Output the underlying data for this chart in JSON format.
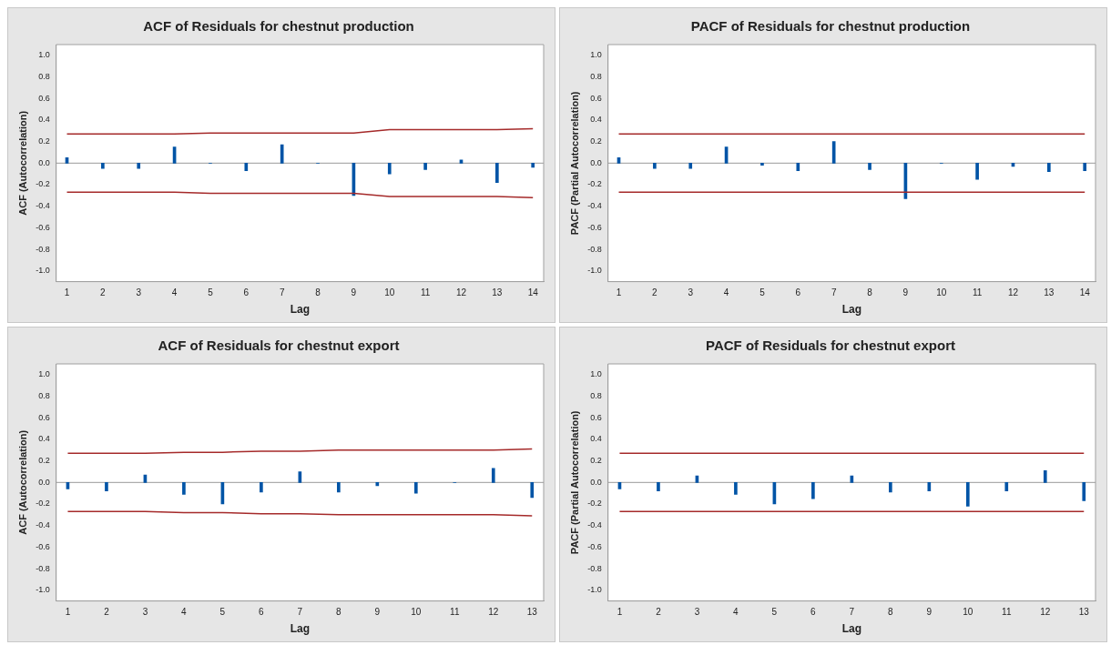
{
  "chart_data": [
    {
      "type": "bar",
      "title": "ACF of Residuals for chestnut production",
      "xlabel": "Lag",
      "ylabel": "ACF (Autocorrelation)",
      "x": [
        1,
        2,
        3,
        4,
        5,
        6,
        7,
        8,
        9,
        10,
        11,
        12,
        13,
        14
      ],
      "xlim": [
        0.7,
        14.3
      ],
      "xticks": [
        1,
        2,
        3,
        4,
        5,
        6,
        7,
        8,
        9,
        10,
        11,
        12,
        13,
        14
      ],
      "series": [
        {
          "color": "#0054a6",
          "values": [
            0.05,
            -0.05,
            -0.05,
            0.15,
            0.0,
            -0.07,
            0.17,
            0.0,
            -0.3,
            -0.1,
            -0.06,
            0.03,
            -0.18,
            -0.04
          ]
        },
        {
          "type": "line",
          "color": "#a52a2a",
          "values": [
            0.27,
            0.27,
            0.27,
            0.27,
            0.28,
            0.28,
            0.28,
            0.28,
            0.28,
            0.31,
            0.31,
            0.31,
            0.31,
            0.32
          ]
        },
        {
          "type": "line",
          "color": "#a52a2a",
          "values": [
            -0.27,
            -0.27,
            -0.27,
            -0.27,
            -0.28,
            -0.28,
            -0.28,
            -0.28,
            -0.28,
            -0.31,
            -0.31,
            -0.31,
            -0.31,
            -0.32
          ]
        }
      ],
      "ylim": [
        -1.1,
        1.1
      ],
      "yticks": [
        {
          "value": -1,
          "label": "-1.0"
        },
        -0.8,
        -0.6,
        -0.4,
        -0.2,
        {
          "value": 0,
          "label": "0.0"
        },
        0.2,
        0.4,
        0.6,
        0.8,
        {
          "value": 1,
          "label": "1.0"
        }
      ],
      "ref_lines": [
        {
          "axis": "y",
          "value": 0,
          "color": "#999999"
        }
      ],
      "grid": false,
      "legend": false,
      "marker": "none"
    },
    {
      "type": "bar",
      "title": "PACF of Residuals for chestnut production",
      "xlabel": "Lag",
      "ylabel": "PACF (Partial Autocorrelation)",
      "x": [
        1,
        2,
        3,
        4,
        5,
        6,
        7,
        8,
        9,
        10,
        11,
        12,
        13,
        14
      ],
      "xlim": [
        0.7,
        14.3
      ],
      "xticks": [
        1,
        2,
        3,
        4,
        5,
        6,
        7,
        8,
        9,
        10,
        11,
        12,
        13,
        14
      ],
      "series": [
        {
          "color": "#0054a6",
          "values": [
            0.05,
            -0.05,
            -0.05,
            0.15,
            -0.02,
            -0.07,
            0.2,
            -0.06,
            -0.33,
            0.0,
            -0.15,
            -0.03,
            -0.08,
            -0.07
          ]
        },
        {
          "type": "line",
          "color": "#a52a2a",
          "values": [
            0.27,
            0.27,
            0.27,
            0.27,
            0.27,
            0.27,
            0.27,
            0.27,
            0.27,
            0.27,
            0.27,
            0.27,
            0.27,
            0.27
          ]
        },
        {
          "type": "line",
          "color": "#a52a2a",
          "values": [
            -0.27,
            -0.27,
            -0.27,
            -0.27,
            -0.27,
            -0.27,
            -0.27,
            -0.27,
            -0.27,
            -0.27,
            -0.27,
            -0.27,
            -0.27,
            -0.27
          ]
        }
      ],
      "ylim": [
        -1.1,
        1.1
      ],
      "yticks": [
        {
          "value": -1,
          "label": "-1.0"
        },
        -0.8,
        -0.6,
        -0.4,
        -0.2,
        {
          "value": 0,
          "label": "0.0"
        },
        0.2,
        0.4,
        0.6,
        0.8,
        {
          "value": 1,
          "label": "1.0"
        }
      ],
      "ref_lines": [
        {
          "axis": "y",
          "value": 0,
          "color": "#999999"
        }
      ],
      "grid": false,
      "legend": false,
      "marker": "none"
    },
    {
      "type": "bar",
      "title": "ACF of Residuals for chestnut export",
      "xlabel": "Lag",
      "ylabel": "ACF (Autocorrelation)",
      "x": [
        1,
        2,
        3,
        4,
        5,
        6,
        7,
        8,
        9,
        10,
        11,
        12,
        13
      ],
      "xlim": [
        0.7,
        13.3
      ],
      "xticks": [
        1,
        2,
        3,
        4,
        5,
        6,
        7,
        8,
        9,
        10,
        11,
        12,
        13
      ],
      "series": [
        {
          "color": "#0054a6",
          "values": [
            -0.06,
            -0.08,
            0.07,
            -0.11,
            -0.2,
            -0.09,
            0.1,
            -0.09,
            -0.03,
            -0.1,
            0.0,
            0.13,
            -0.14
          ]
        },
        {
          "type": "line",
          "color": "#a52a2a",
          "values": [
            0.27,
            0.27,
            0.27,
            0.28,
            0.28,
            0.29,
            0.29,
            0.3,
            0.3,
            0.3,
            0.3,
            0.3,
            0.31
          ]
        },
        {
          "type": "line",
          "color": "#a52a2a",
          "values": [
            -0.27,
            -0.27,
            -0.27,
            -0.28,
            -0.28,
            -0.29,
            -0.29,
            -0.3,
            -0.3,
            -0.3,
            -0.3,
            -0.3,
            -0.31
          ]
        }
      ],
      "ylim": [
        -1.1,
        1.1
      ],
      "yticks": [
        {
          "value": -1,
          "label": "-1.0"
        },
        -0.8,
        -0.6,
        -0.4,
        -0.2,
        {
          "value": 0,
          "label": "0.0"
        },
        0.2,
        0.4,
        0.6,
        0.8,
        {
          "value": 1,
          "label": "1.0"
        }
      ],
      "ref_lines": [
        {
          "axis": "y",
          "value": 0,
          "color": "#999999"
        }
      ],
      "grid": false,
      "legend": false,
      "marker": "none"
    },
    {
      "type": "bar",
      "title": "PACF of Residuals for chestnut export",
      "xlabel": "Lag",
      "ylabel": "PACF (Partial Autocorrelation)",
      "x": [
        1,
        2,
        3,
        4,
        5,
        6,
        7,
        8,
        9,
        10,
        11,
        12,
        13
      ],
      "xlim": [
        0.7,
        13.3
      ],
      "xticks": [
        1,
        2,
        3,
        4,
        5,
        6,
        7,
        8,
        9,
        10,
        11,
        12,
        13
      ],
      "series": [
        {
          "color": "#0054a6",
          "values": [
            -0.06,
            -0.08,
            0.06,
            -0.11,
            -0.2,
            -0.15,
            0.06,
            -0.09,
            -0.08,
            -0.22,
            -0.08,
            0.11,
            -0.17
          ]
        },
        {
          "type": "line",
          "color": "#a52a2a",
          "values": [
            0.27,
            0.27,
            0.27,
            0.27,
            0.27,
            0.27,
            0.27,
            0.27,
            0.27,
            0.27,
            0.27,
            0.27,
            0.27
          ]
        },
        {
          "type": "line",
          "color": "#a52a2a",
          "values": [
            -0.27,
            -0.27,
            -0.27,
            -0.27,
            -0.27,
            -0.27,
            -0.27,
            -0.27,
            -0.27,
            -0.27,
            -0.27,
            -0.27,
            -0.27
          ]
        }
      ],
      "ylim": [
        -1.1,
        1.1
      ],
      "yticks": [
        {
          "value": -1,
          "label": "-1.0"
        },
        -0.8,
        -0.6,
        -0.4,
        -0.2,
        {
          "value": 0,
          "label": "0.0"
        },
        0.2,
        0.4,
        0.6,
        0.8,
        {
          "value": 1,
          "label": "1.0"
        }
      ],
      "ref_lines": [
        {
          "axis": "y",
          "value": 0,
          "color": "#999999"
        }
      ],
      "grid": false,
      "legend": false,
      "marker": "none"
    }
  ]
}
